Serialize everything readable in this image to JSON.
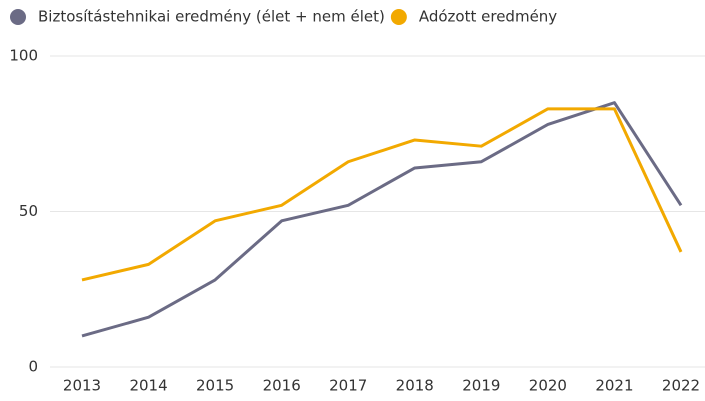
{
  "chart_data": {
    "type": "line",
    "categories": [
      "2013",
      "2014",
      "2015",
      "2016",
      "2017",
      "2018",
      "2019",
      "2020",
      "2021",
      "2022"
    ],
    "series": [
      {
        "name": "Biztosítástehnikai eredmény (élet + nem élet)",
        "color": "#6b6b85",
        "values": [
          10,
          16,
          28,
          47,
          52,
          64,
          66,
          78,
          85,
          52
        ]
      },
      {
        "name": "Adózott eredmény",
        "color": "#f2a900",
        "values": [
          28,
          33,
          47,
          52,
          66,
          73,
          71,
          83,
          83,
          37
        ]
      }
    ],
    "ylim": [
      0,
      100
    ],
    "yticks": [
      0,
      50,
      100
    ],
    "grid": true,
    "legend": "top-left"
  }
}
